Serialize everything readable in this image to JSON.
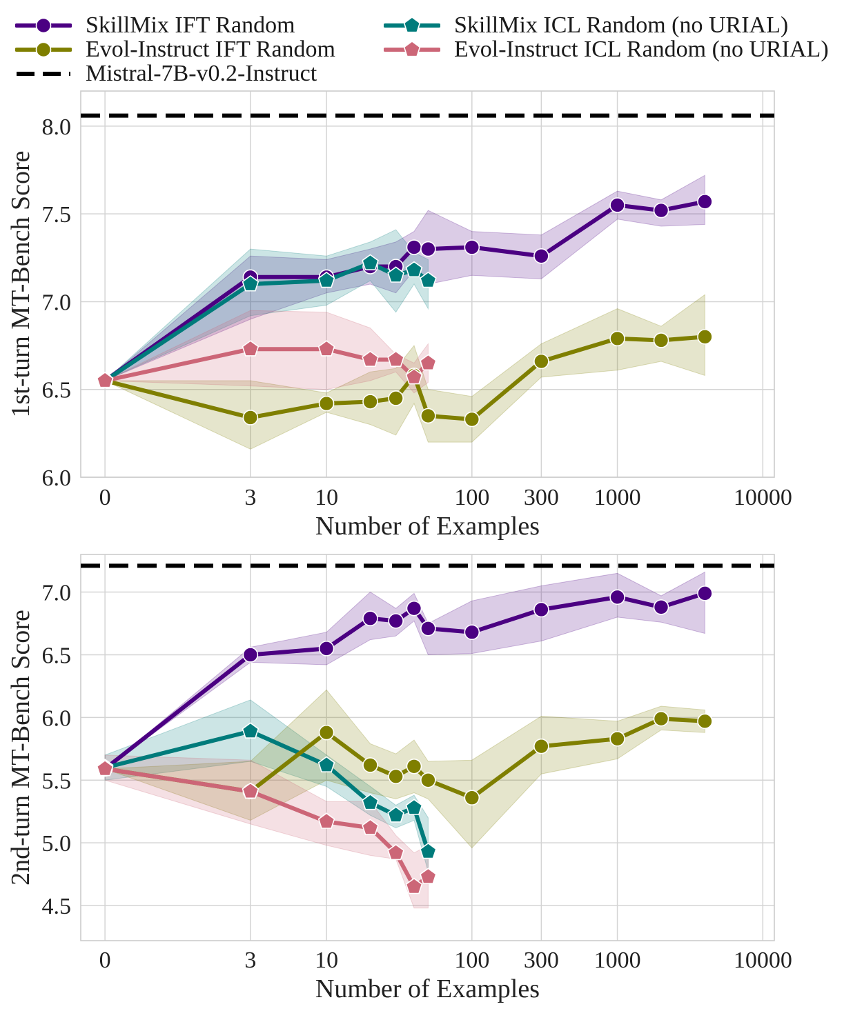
{
  "legend": [
    {
      "label": "SkillMix IFT Random",
      "color": "#4b0082",
      "marker": "circle",
      "dashed": false
    },
    {
      "label": "SkillMix ICL Random (no URIAL)",
      "color": "#007b7b",
      "marker": "pentagon",
      "dashed": false
    },
    {
      "label": "Evol-Instruct IFT Random",
      "color": "#7f7f00",
      "marker": "circle",
      "dashed": false
    },
    {
      "label": "Evol-Instruct ICL Random (no URIAL)",
      "color": "#cc6677",
      "marker": "pentagon",
      "dashed": false
    },
    {
      "label": "Mistral-7B-v0.2-Instruct",
      "color": "#000000",
      "marker": "none",
      "dashed": true
    }
  ],
  "chart_data": [
    {
      "type": "line",
      "xlabel": "Number of Examples",
      "ylabel": "1st-turn MT-Bench Score",
      "xscale": "symlog",
      "xticks": [
        0,
        3,
        10,
        100,
        300,
        1000,
        10000
      ],
      "xtick_labels": [
        "0",
        "3",
        "10",
        "100",
        "300",
        "1000",
        "10000"
      ],
      "yticks": [
        6.0,
        6.5,
        7.0,
        7.5,
        8.0
      ],
      "ytick_labels": [
        "6.0",
        "6.5",
        "7.0",
        "7.5",
        "8.0"
      ],
      "ylim": [
        6.0,
        8.2
      ],
      "grid": true,
      "baseline": {
        "name": "Mistral-7B-v0.2-Instruct",
        "value": 8.06
      },
      "series": [
        {
          "name": "SkillMix IFT Random",
          "color": "#4b0082",
          "marker": "circle",
          "x": [
            0,
            3,
            10,
            20,
            30,
            40,
            50,
            100,
            300,
            1000,
            2000,
            4000
          ],
          "y": [
            6.55,
            7.14,
            7.14,
            7.2,
            7.2,
            7.31,
            7.3,
            7.31,
            7.26,
            7.55,
            7.52,
            7.57
          ],
          "lo": [
            6.55,
            6.9,
            7.05,
            7.1,
            7.05,
            7.18,
            7.1,
            7.15,
            7.13,
            7.47,
            7.43,
            7.44
          ],
          "hi": [
            6.55,
            7.26,
            7.24,
            7.3,
            7.34,
            7.4,
            7.52,
            7.4,
            7.38,
            7.63,
            7.58,
            7.72
          ]
        },
        {
          "name": "SkillMix ICL Random (no URIAL)",
          "color": "#007b7b",
          "marker": "pentagon",
          "x": [
            0,
            3,
            10,
            20,
            30,
            40,
            50
          ],
          "y": [
            6.55,
            7.1,
            7.12,
            7.22,
            7.15,
            7.18,
            7.12
          ],
          "lo": [
            6.55,
            6.92,
            6.98,
            7.12,
            6.94,
            7.1,
            6.96
          ],
          "hi": [
            6.55,
            7.3,
            7.26,
            7.34,
            7.41,
            7.28,
            7.24
          ]
        },
        {
          "name": "Evol-Instruct IFT Random",
          "color": "#7f7f00",
          "marker": "circle",
          "x": [
            0,
            3,
            10,
            20,
            30,
            40,
            50,
            100,
            300,
            1000,
            2000,
            4000
          ],
          "y": [
            6.55,
            6.34,
            6.42,
            6.43,
            6.45,
            6.58,
            6.35,
            6.33,
            6.66,
            6.79,
            6.78,
            6.8
          ],
          "lo": [
            6.55,
            6.16,
            6.37,
            6.3,
            6.24,
            6.42,
            6.2,
            6.2,
            6.57,
            6.61,
            6.66,
            6.58
          ],
          "hi": [
            6.55,
            6.55,
            6.48,
            6.6,
            6.62,
            6.75,
            6.5,
            6.46,
            6.76,
            6.96,
            6.86,
            7.04
          ]
        },
        {
          "name": "Evol-Instruct ICL Random (no URIAL)",
          "color": "#cc6677",
          "marker": "pentagon",
          "x": [
            0,
            3,
            10,
            20,
            30,
            40,
            50
          ],
          "y": [
            6.55,
            6.73,
            6.73,
            6.67,
            6.67,
            6.57,
            6.65
          ],
          "lo": [
            6.55,
            6.52,
            6.5,
            6.55,
            6.6,
            6.48,
            6.54
          ],
          "hi": [
            6.55,
            6.95,
            6.94,
            6.85,
            6.7,
            6.65,
            6.76
          ]
        }
      ]
    },
    {
      "type": "line",
      "xlabel": "Number of Examples",
      "ylabel": "2nd-turn MT-Bench Score",
      "xscale": "symlog",
      "xticks": [
        0,
        3,
        10,
        100,
        300,
        1000,
        10000
      ],
      "xtick_labels": [
        "0",
        "3",
        "10",
        "100",
        "300",
        "1000",
        "10000"
      ],
      "yticks": [
        4.5,
        5.0,
        5.5,
        6.0,
        6.5,
        7.0
      ],
      "ytick_labels": [
        "4.5",
        "5.0",
        "5.5",
        "6.0",
        "6.5",
        "7.0"
      ],
      "ylim": [
        4.22,
        7.3
      ],
      "grid": true,
      "baseline": {
        "name": "Mistral-7B-v0.2-Instruct",
        "value": 7.21
      },
      "series": [
        {
          "name": "SkillMix IFT Random",
          "color": "#4b0082",
          "marker": "circle",
          "x": [
            0,
            3,
            10,
            20,
            30,
            40,
            50,
            100,
            300,
            1000,
            2000,
            4000
          ],
          "y": [
            5.59,
            6.5,
            6.55,
            6.79,
            6.77,
            6.87,
            6.71,
            6.68,
            6.86,
            6.96,
            6.88,
            6.99
          ],
          "lo": [
            5.59,
            6.44,
            6.42,
            6.62,
            6.65,
            6.77,
            6.5,
            6.51,
            6.61,
            6.8,
            6.76,
            6.67
          ],
          "hi": [
            5.59,
            6.56,
            6.68,
            7.0,
            6.87,
            6.99,
            6.75,
            6.93,
            7.05,
            7.15,
            6.97,
            7.16
          ]
        },
        {
          "name": "SkillMix ICL Random (no URIAL)",
          "color": "#007b7b",
          "marker": "pentagon",
          "x": [
            0,
            3,
            10,
            20,
            30,
            40,
            50
          ],
          "y": [
            5.6,
            5.89,
            5.62,
            5.32,
            5.22,
            5.28,
            4.93
          ],
          "lo": [
            5.5,
            5.65,
            5.45,
            5.22,
            5.12,
            5.18,
            4.77
          ],
          "hi": [
            5.7,
            6.14,
            5.7,
            5.45,
            5.3,
            5.38,
            5.2
          ]
        },
        {
          "name": "Evol-Instruct IFT Random",
          "color": "#7f7f00",
          "marker": "circle",
          "x": [
            0,
            3,
            10,
            20,
            30,
            40,
            50,
            100,
            300,
            1000,
            2000,
            4000
          ],
          "y": [
            5.59,
            5.41,
            5.88,
            5.62,
            5.53,
            5.61,
            5.5,
            5.36,
            5.77,
            5.83,
            5.99,
            5.97
          ],
          "lo": [
            5.59,
            5.18,
            5.5,
            5.4,
            5.35,
            5.4,
            5.35,
            4.96,
            5.55,
            5.67,
            5.9,
            5.88
          ],
          "hi": [
            5.59,
            5.65,
            6.22,
            5.79,
            5.71,
            5.82,
            5.65,
            5.66,
            6.01,
            5.97,
            6.09,
            6.06
          ]
        },
        {
          "name": "Evol-Instruct ICL Random (no URIAL)",
          "color": "#cc6677",
          "marker": "pentagon",
          "x": [
            0,
            3,
            10,
            20,
            30,
            40,
            50
          ],
          "y": [
            5.59,
            5.41,
            5.17,
            5.12,
            4.92,
            4.65,
            4.73
          ],
          "lo": [
            5.5,
            5.15,
            4.98,
            4.9,
            4.87,
            4.48,
            4.48
          ],
          "hi": [
            5.7,
            5.66,
            5.33,
            5.33,
            5.06,
            4.92,
            4.98
          ]
        }
      ]
    }
  ]
}
